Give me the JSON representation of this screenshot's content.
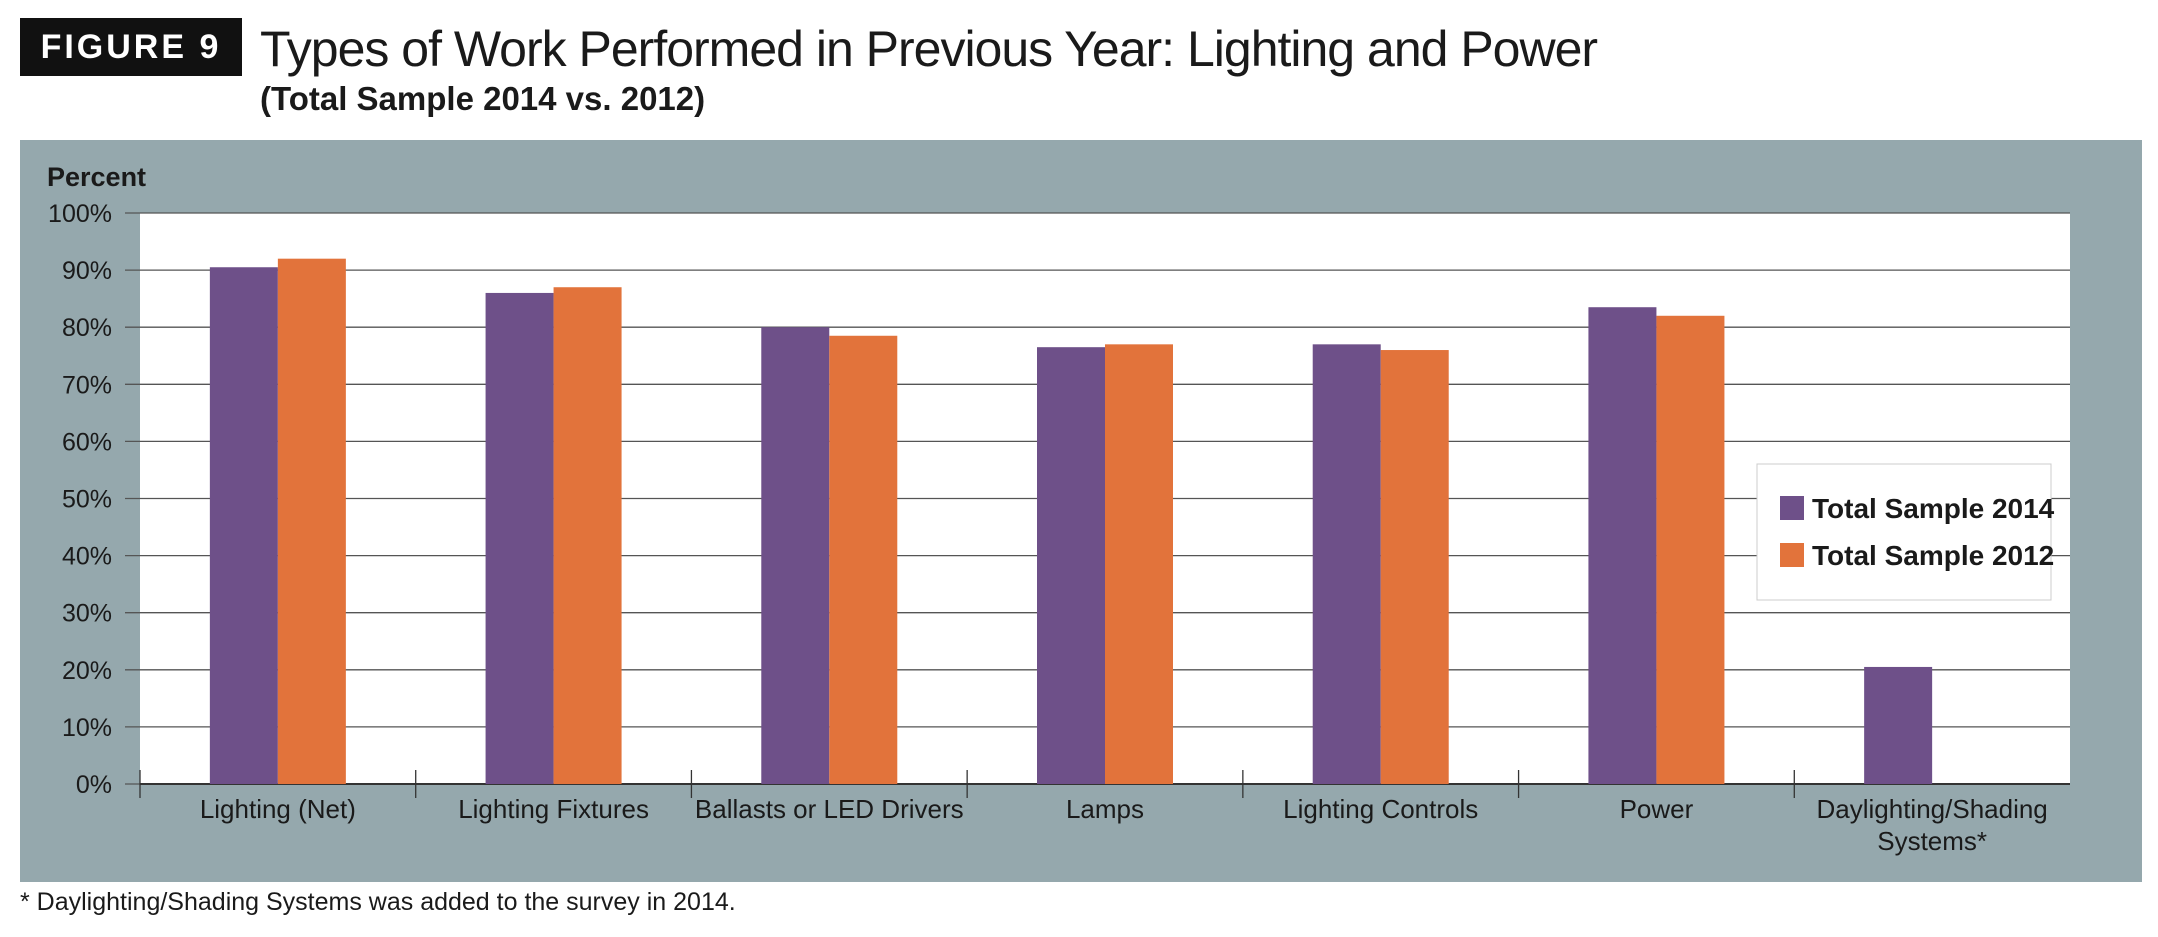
{
  "figure": {
    "badge": "FIGURE 9"
  },
  "title": "Types of Work Performed in Previous Year: Lighting and Power",
  "subtitle": "(Total Sample 2014 vs. 2012)",
  "footnote": "* Daylighting/Shading Systems was added to the survey in 2014.",
  "colors": {
    "panel": "#95a8ad",
    "series_2014": "#6e5089",
    "series_2012": "#e2733b",
    "grid": "#555555"
  },
  "chart_data": {
    "type": "bar",
    "title": "Types of Work Performed in Previous Year: Lighting and Power",
    "ylabel": "Percent",
    "xlabel": "",
    "ylim": [
      0,
      100
    ],
    "yticks": [
      0,
      10,
      20,
      30,
      40,
      50,
      60,
      70,
      80,
      90,
      100
    ],
    "ytick_labels": [
      "0%",
      "10%",
      "20%",
      "30%",
      "40%",
      "50%",
      "60%",
      "70%",
      "80%",
      "90%",
      "100%"
    ],
    "grid": true,
    "legend_position": "right",
    "categories": [
      [
        "Lighting (Net)"
      ],
      [
        "Lighting Fixtures"
      ],
      [
        "Ballasts or LED Drivers"
      ],
      [
        "Lamps"
      ],
      [
        "Lighting Controls"
      ],
      [
        "Power"
      ],
      [
        "Daylighting/Shading",
        "Systems*"
      ]
    ],
    "series": [
      {
        "name": "Total Sample 2014",
        "color": "#6e5089",
        "values": [
          90.5,
          86,
          80,
          76.5,
          77,
          83.5,
          20.5
        ]
      },
      {
        "name": "Total Sample 2012",
        "color": "#e2733b",
        "values": [
          92,
          87,
          78.5,
          77,
          76,
          82,
          null
        ]
      }
    ]
  }
}
